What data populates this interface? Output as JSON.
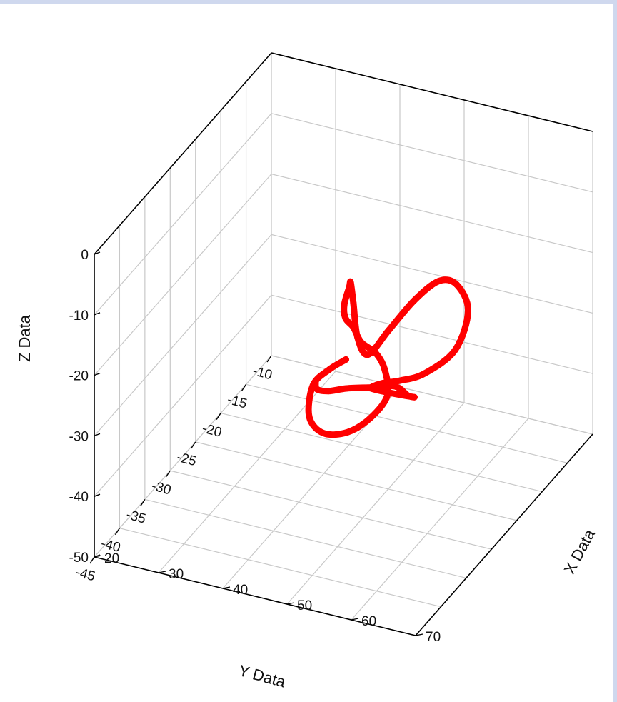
{
  "chart_data": {
    "type": "line3d",
    "xlabel": "X Data",
    "ylabel": "Y Data",
    "zlabel": "Z Data",
    "xlim": [
      20,
      70
    ],
    "ylim": [
      -10,
      -45
    ],
    "zlim": [
      -50,
      0
    ],
    "x_ticks": [
      "20",
      "30",
      "40",
      "50",
      "60",
      "70"
    ],
    "y_ticks": [
      "-10",
      "-15",
      "-20",
      "-25",
      "-30",
      "-35",
      "-40",
      "-45"
    ],
    "z_ticks": [
      "0",
      "-10",
      "-20",
      "-30",
      "-40",
      "-50"
    ],
    "series": [
      {
        "color": "#ff0000",
        "x": [
          45,
          44,
          43,
          44,
          47,
          50,
          52,
          53,
          51,
          48,
          45,
          43,
          41,
          40,
          40,
          41,
          43,
          46,
          50,
          54,
          58,
          61,
          63,
          64,
          62,
          58,
          55,
          53,
          52,
          53,
          55,
          57,
          58,
          57,
          55,
          52,
          49,
          47,
          46,
          45
        ],
        "y": [
          -27,
          -29,
          -31,
          -33,
          -34,
          -33,
          -31,
          -29,
          -27,
          -25,
          -24,
          -23,
          -22,
          -21,
          -20,
          -21,
          -23,
          -26,
          -29,
          -30,
          -30,
          -29,
          -28,
          -27,
          -27,
          -28,
          -29,
          -30,
          -31,
          -32,
          -32,
          -31,
          -30,
          -30,
          -30,
          -31,
          -32,
          -33,
          -34,
          -33
        ],
        "z": [
          -28,
          -28,
          -29,
          -32,
          -33,
          -33,
          -32,
          -30,
          -28,
          -28,
          -28,
          -27,
          -27,
          -26,
          -24,
          -22,
          -23,
          -25,
          -24,
          -18,
          -12,
          -9,
          -10,
          -15,
          -22,
          -26,
          -27,
          -27,
          -27,
          -26,
          -26,
          -27,
          -28,
          -28,
          -27,
          -27,
          -27,
          -27,
          -26,
          -26
        ]
      }
    ]
  }
}
